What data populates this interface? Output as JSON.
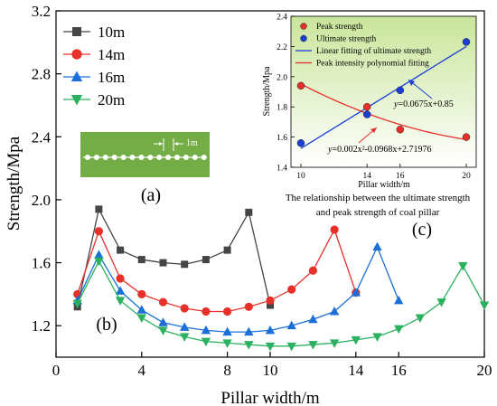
{
  "chart_data": [
    {
      "type": "line",
      "xlabel": "Pillar width/m",
      "ylabel": "Strength/Mpa",
      "xlim": [
        0,
        20
      ],
      "ylim": [
        1.0,
        3.2
      ],
      "x_ticks": [
        0,
        4,
        8,
        10,
        14,
        16,
        20
      ],
      "y_ticks": [
        1.2,
        1.6,
        2.0,
        2.4,
        2.8,
        3.2
      ],
      "legend_position": "top-left",
      "series": [
        {
          "name": "10m",
          "color": "#454545",
          "marker": "square",
          "x": [
            1,
            2,
            3,
            4,
            5,
            6,
            7,
            8,
            9,
            10
          ],
          "y": [
            1.32,
            1.94,
            1.68,
            1.62,
            1.6,
            1.59,
            1.62,
            1.68,
            1.92,
            1.33
          ]
        },
        {
          "name": "14m",
          "color": "#e8302b",
          "marker": "circle",
          "x": [
            1,
            2,
            3,
            4,
            5,
            6,
            7,
            8,
            9,
            10,
            11,
            12,
            13,
            14
          ],
          "y": [
            1.4,
            1.8,
            1.5,
            1.4,
            1.35,
            1.31,
            1.29,
            1.29,
            1.32,
            1.36,
            1.43,
            1.55,
            1.81,
            1.41
          ]
        },
        {
          "name": "16m",
          "color": "#1a6fd8",
          "marker": "triangle-up",
          "x": [
            1,
            2,
            3,
            4,
            5,
            6,
            7,
            8,
            9,
            10,
            11,
            12,
            13,
            14,
            15,
            16
          ],
          "y": [
            1.36,
            1.65,
            1.42,
            1.3,
            1.22,
            1.19,
            1.17,
            1.16,
            1.16,
            1.17,
            1.2,
            1.24,
            1.29,
            1.41,
            1.7,
            1.36
          ]
        },
        {
          "name": "20m",
          "color": "#2bb160",
          "marker": "triangle-down",
          "x": [
            1,
            2,
            3,
            4,
            5,
            6,
            7,
            8,
            9,
            10,
            11,
            12,
            13,
            14,
            15,
            16,
            17,
            18,
            19,
            20
          ],
          "y": [
            1.34,
            1.61,
            1.36,
            1.25,
            1.17,
            1.13,
            1.1,
            1.09,
            1.08,
            1.07,
            1.07,
            1.08,
            1.09,
            1.11,
            1.13,
            1.18,
            1.25,
            1.35,
            1.58,
            1.33
          ]
        }
      ]
    },
    {
      "type": "scatter",
      "xlabel": "Pillar width/m",
      "ylabel": "Strength/Mpa",
      "xlim": [
        9.4,
        20.6
      ],
      "ylim": [
        1.4,
        2.4
      ],
      "x_ticks": [
        10,
        14,
        16,
        20
      ],
      "y_ticks": [
        1.4,
        1.6,
        1.8,
        2.0,
        2.2,
        2.4
      ],
      "legend_position": "top-left",
      "series": [
        {
          "name": "Peak strength",
          "color": "#e8302b",
          "x": [
            10,
            14,
            16,
            20
          ],
          "y": [
            1.94,
            1.8,
            1.65,
            1.6
          ]
        },
        {
          "name": "Ultimate strength",
          "color": "#1a3fd6",
          "x": [
            10,
            14,
            16,
            20
          ],
          "y": [
            1.56,
            1.75,
            1.91,
            2.23
          ]
        }
      ],
      "fits": [
        {
          "name": "Linear fitting of ultimate strength",
          "color": "#1a3fd6",
          "kind": "linear",
          "coef": [
            0.0675,
            0.85
          ],
          "equation_prefix": "y",
          "equation_body": "=0.0675x+0.85"
        },
        {
          "name": "Peak intensity polynomial fitting",
          "color": "#e8302b",
          "kind": "poly2",
          "coef": [
            0.002,
            -0.0968,
            2.71976
          ],
          "equation_prefix": "y",
          "equation_body": "=0.002x²-0.0968x+2.71976"
        }
      ],
      "caption": "The relationship between the ultimate strength and peak strength of coal pillar",
      "caption_lines": [
        "The relationship between the ultimate strength",
        "and peak strength of coal pillar"
      ]
    }
  ],
  "labels": {
    "a": "(a)",
    "b": "(b)",
    "c": "(c)",
    "scale": "1m"
  },
  "inset_a_circles": 14
}
